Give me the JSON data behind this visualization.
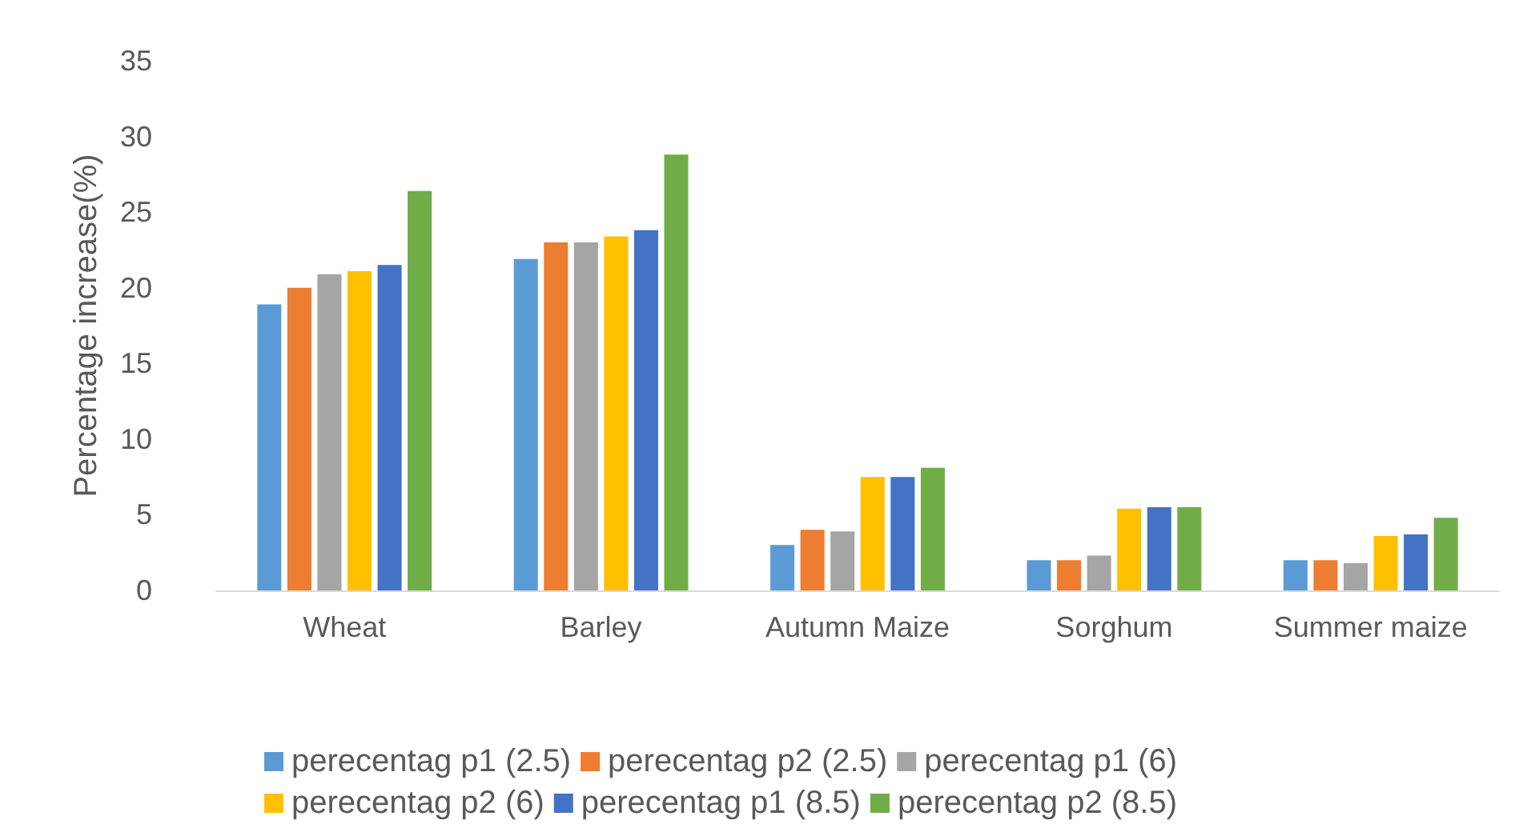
{
  "chart_data": {
    "type": "bar",
    "ylabel": "Percentage increase(%)",
    "categories": [
      "Wheat",
      "Barley",
      "Autumn Maize",
      "Sorghum",
      "Summer maize"
    ],
    "series": [
      {
        "name": "perecentag p1 (2.5)",
        "color": "#5b9bd5",
        "values": [
          18.9,
          21.9,
          3.0,
          2.0,
          2.0
        ]
      },
      {
        "name": "perecentag p2 (2.5)",
        "color": "#ed7d31",
        "values": [
          20.0,
          23.0,
          4.0,
          2.0,
          2.0
        ]
      },
      {
        "name": "perecentag p1 (6)",
        "color": "#a5a5a5",
        "values": [
          20.9,
          23.0,
          3.9,
          2.3,
          1.8
        ]
      },
      {
        "name": "perecentag p2 (6)",
        "color": "#ffc000",
        "values": [
          21.1,
          23.4,
          7.5,
          5.4,
          3.6
        ]
      },
      {
        "name": "perecentag p1 (8.5)",
        "color": "#4472c4",
        "values": [
          21.5,
          23.8,
          7.5,
          5.5,
          3.7
        ]
      },
      {
        "name": "perecentag p2 (8.5)",
        "color": "#70ad47",
        "values": [
          26.4,
          28.8,
          8.1,
          5.5,
          4.8
        ]
      }
    ],
    "ylim": [
      0,
      35
    ],
    "yticks": [
      0,
      5,
      10,
      15,
      20,
      25,
      30,
      35
    ],
    "grid": false,
    "legend": "bottom"
  }
}
